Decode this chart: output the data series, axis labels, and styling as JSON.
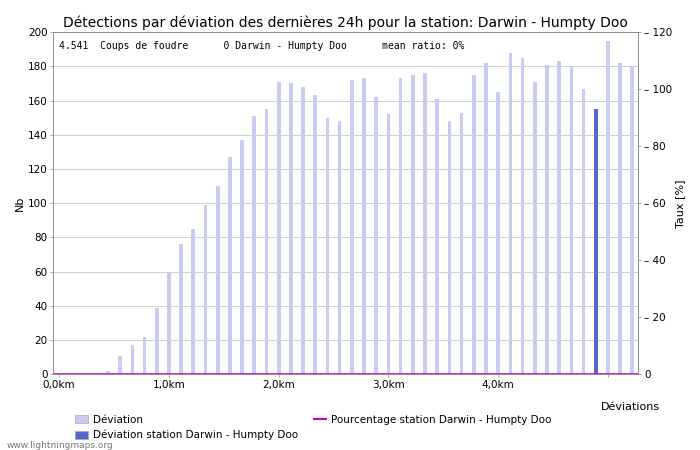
{
  "title": "Détections par déviation des dernières 24h pour la station: Darwin - Humpty Doo",
  "annotation": "4.541  Coups de foudre      0 Darwin - Humpty Doo      mean ratio: 0%",
  "xlabel": "Déviations",
  "ylabel_left": "Nb",
  "ylabel_right": "Taux [%]",
  "ylim_left": [
    0,
    200
  ],
  "ylim_right": [
    0,
    120
  ],
  "ytick_left": [
    0,
    20,
    40,
    60,
    80,
    100,
    120,
    140,
    160,
    180,
    200
  ],
  "ytick_right": [
    0,
    20,
    40,
    60,
    80,
    100,
    120
  ],
  "n_total_bins": 46,
  "bar_values_clean": [
    0,
    0,
    0,
    0,
    0,
    0,
    0,
    0,
    0,
    2,
    0,
    11,
    0,
    17,
    0,
    22,
    0,
    39,
    0,
    60,
    0,
    76,
    0,
    85,
    0,
    99,
    0,
    110,
    0,
    127,
    0,
    137,
    0,
    151,
    0,
    155,
    0,
    171,
    0,
    170,
    0,
    168,
    0,
    163,
    0,
    150
  ],
  "bar_values_station": [
    0,
    0,
    0,
    0,
    0,
    0,
    0,
    0,
    0,
    0,
    0,
    0,
    0,
    0,
    0,
    0,
    0,
    0,
    0,
    0,
    0,
    0,
    0,
    0,
    0,
    0,
    0,
    0,
    0,
    0,
    0,
    0,
    0,
    0,
    0,
    0,
    0,
    0,
    0,
    0,
    0,
    0,
    0,
    0,
    0,
    0
  ],
  "all_bars": [
    0,
    0,
    0,
    0,
    0,
    0,
    0,
    0,
    2,
    0,
    11,
    0,
    17,
    0,
    22,
    0,
    39,
    0,
    60,
    0,
    76,
    0,
    85,
    0,
    99,
    0,
    110,
    0,
    127,
    0,
    137,
    0,
    151,
    0,
    155,
    0,
    171,
    0,
    170,
    0,
    168,
    0,
    163,
    0,
    150,
    0,
    148,
    0,
    172,
    0,
    173,
    0,
    162,
    0,
    152,
    0,
    173,
    0,
    175,
    0,
    176,
    0,
    161,
    0,
    148,
    0,
    153,
    0,
    175,
    0,
    182,
    0,
    165,
    0,
    188,
    0,
    185,
    0,
    171,
    0,
    181,
    0,
    183,
    0,
    180,
    0,
    167,
    0,
    155,
    0,
    195,
    0,
    182,
    0,
    180
  ],
  "station_bar_index": 88,
  "bar_color_light": "#c8ccf0",
  "bar_color_station": "#5566cc",
  "line_color": "#cc00cc",
  "grid_color": "#aaaaaa",
  "background_color": "#ffffff",
  "text_color": "#000000",
  "watermark": "www.lightningmaps.org",
  "legend_deviation": "Déviation",
  "legend_station": "Déviation station Darwin - Humpty Doo",
  "legend_percent": "Pourcentage station Darwin - Humpty Doo",
  "title_fontsize": 10,
  "axis_fontsize": 8,
  "tick_fontsize": 7.5
}
